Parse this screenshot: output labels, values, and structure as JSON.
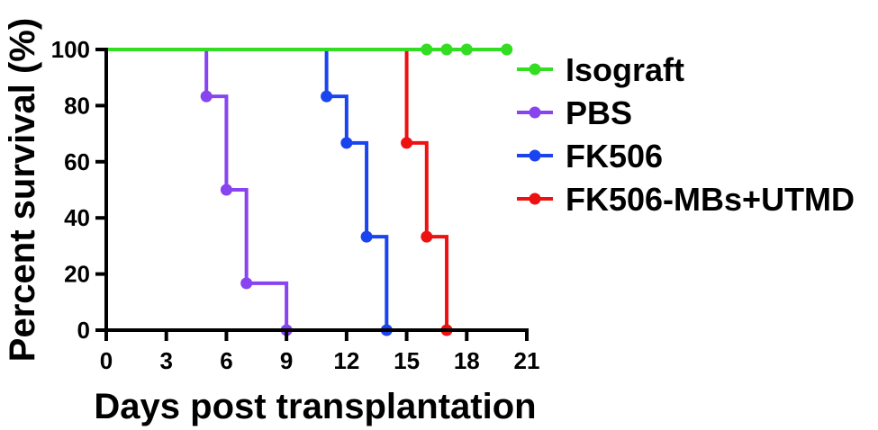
{
  "chart_data": {
    "type": "line",
    "step": true,
    "xlabel": "Days post transplantation",
    "ylabel": "Percent survival (%)",
    "xlim": [
      0,
      21
    ],
    "ylim": [
      0,
      100
    ],
    "xticks": [
      "0",
      "3",
      "6",
      "9",
      "12",
      "15",
      "18",
      "21"
    ],
    "yticks": [
      "0",
      "20",
      "40",
      "60",
      "80",
      "100"
    ],
    "grid": false,
    "legend_position": "right",
    "series": [
      {
        "name": "Isograft",
        "color": "#33dd22",
        "steps": [
          [
            0,
            100
          ],
          [
            20,
            100
          ]
        ],
        "markers": [
          [
            16,
            100
          ],
          [
            17,
            100
          ],
          [
            18,
            100
          ],
          [
            20,
            100
          ]
        ]
      },
      {
        "name": "PBS",
        "color": "#8844ee",
        "steps": [
          [
            0,
            100
          ],
          [
            5,
            83.3
          ],
          [
            6,
            50
          ],
          [
            7,
            16.7
          ],
          [
            9,
            0
          ]
        ],
        "markers": [
          [
            5,
            83.3
          ],
          [
            6,
            50
          ],
          [
            7,
            16.7
          ],
          [
            9,
            0
          ]
        ]
      },
      {
        "name": "FK506",
        "color": "#1a44ee",
        "steps": [
          [
            0,
            100
          ],
          [
            11,
            83.3
          ],
          [
            12,
            66.7
          ],
          [
            13,
            33.3
          ],
          [
            14,
            0
          ]
        ],
        "markers": [
          [
            11,
            83.3
          ],
          [
            12,
            66.7
          ],
          [
            13,
            33.3
          ],
          [
            14,
            0
          ]
        ]
      },
      {
        "name": "FK506-MBs+UTMD",
        "color": "#ee1111",
        "steps": [
          [
            0,
            100
          ],
          [
            15,
            66.7
          ],
          [
            16,
            33.3
          ],
          [
            17,
            0
          ]
        ],
        "markers": [
          [
            15,
            66.7
          ],
          [
            16,
            33.3
          ],
          [
            17,
            0
          ]
        ]
      }
    ]
  }
}
